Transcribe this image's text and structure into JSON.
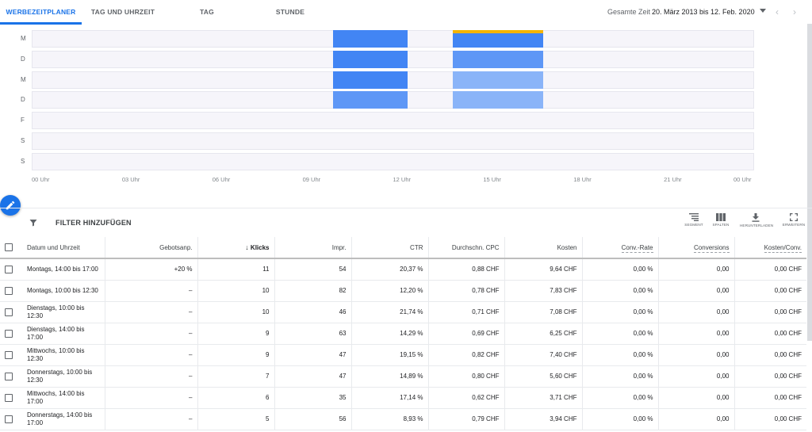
{
  "tabs": [
    {
      "label": "WERBEZEITPLANER",
      "active": true
    },
    {
      "label": "TAG UND UHRZEIT",
      "active": false
    },
    {
      "label": "TAG",
      "active": false
    },
    {
      "label": "STUNDE",
      "active": false
    }
  ],
  "date_range": {
    "label": "Gesamte Zeit",
    "value": "20. März 2013 bis 12. Feb. 2020"
  },
  "heatmap": {
    "days": [
      "M",
      "D",
      "M",
      "D",
      "F",
      "S",
      "S"
    ],
    "hours": [
      "00 Uhr",
      "03 Uhr",
      "06 Uhr",
      "09 Uhr",
      "12 Uhr",
      "15 Uhr",
      "18 Uhr",
      "21 Uhr",
      "00 Uhr"
    ],
    "colors": {
      "strong": "#4285f4",
      "medium": "#5e97f6",
      "light": "#8ab4f8",
      "accent": "#f4b400",
      "empty": "#f6f5fa"
    },
    "blocks": [
      {
        "day": 0,
        "start_hour": 10,
        "end_hour": 12.5,
        "level": "strong"
      },
      {
        "day": 0,
        "start_hour": 14,
        "end_hour": 17,
        "level": "strong",
        "top_accent": true
      },
      {
        "day": 1,
        "start_hour": 10,
        "end_hour": 12.5,
        "level": "strong"
      },
      {
        "day": 1,
        "start_hour": 14,
        "end_hour": 17,
        "level": "medium"
      },
      {
        "day": 2,
        "start_hour": 10,
        "end_hour": 12.5,
        "level": "strong"
      },
      {
        "day": 2,
        "start_hour": 14,
        "end_hour": 17,
        "level": "light"
      },
      {
        "day": 3,
        "start_hour": 10,
        "end_hour": 12.5,
        "level": "medium"
      },
      {
        "day": 3,
        "start_hour": 14,
        "end_hour": 17,
        "level": "light"
      }
    ]
  },
  "filter": {
    "label": "FILTER HINZUFÜGEN"
  },
  "tools": [
    {
      "label": "SEGMENT",
      "icon": "segment-icon"
    },
    {
      "label": "SPALTEN",
      "icon": "columns-icon"
    },
    {
      "label": "HERUNTERLADEN",
      "icon": "download-icon"
    },
    {
      "label": "ERWEITERN",
      "icon": "expand-icon"
    }
  ],
  "table": {
    "columns": [
      "Datum und Uhrzeit",
      "Gebotsanp.",
      "Klicks",
      "Impr.",
      "CTR",
      "Durchschn. CPC",
      "Kosten",
      "Conv.-Rate",
      "Conversions",
      "Kosten/Conv."
    ],
    "rows": [
      [
        "Montags, 14:00 bis 17:00",
        "+20 %",
        "11",
        "54",
        "20,37 %",
        "0,88 CHF",
        "9,64 CHF",
        "0,00 %",
        "0,00",
        "0,00 CHF"
      ],
      [
        "Montags, 10:00 bis 12:30",
        "–",
        "10",
        "82",
        "12,20 %",
        "0,78 CHF",
        "7,83 CHF",
        "0,00 %",
        "0,00",
        "0,00 CHF"
      ],
      [
        "Dienstags, 10:00 bis 12:30",
        "–",
        "10",
        "46",
        "21,74 %",
        "0,71 CHF",
        "7,08 CHF",
        "0,00 %",
        "0,00",
        "0,00 CHF"
      ],
      [
        "Dienstags, 14:00 bis 17:00",
        "–",
        "9",
        "63",
        "14,29 %",
        "0,69 CHF",
        "6,25 CHF",
        "0,00 %",
        "0,00",
        "0,00 CHF"
      ],
      [
        "Mittwochs, 10:00 bis 12:30",
        "–",
        "9",
        "47",
        "19,15 %",
        "0,82 CHF",
        "7,40 CHF",
        "0,00 %",
        "0,00",
        "0,00 CHF"
      ],
      [
        "Donnerstags, 10:00 bis 12:30",
        "–",
        "7",
        "47",
        "14,89 %",
        "0,80 CHF",
        "5,60 CHF",
        "0,00 %",
        "0,00",
        "0,00 CHF"
      ],
      [
        "Mittwochs, 14:00 bis 17:00",
        "–",
        "6",
        "35",
        "17,14 %",
        "0,62 CHF",
        "3,71 CHF",
        "0,00 %",
        "0,00",
        "0,00 CHF"
      ],
      [
        "Donnerstags, 14:00 bis 17:00",
        "–",
        "5",
        "56",
        "8,93 %",
        "0,79 CHF",
        "3,94 CHF",
        "0,00 %",
        "0,00",
        "0,00 CHF"
      ]
    ]
  }
}
